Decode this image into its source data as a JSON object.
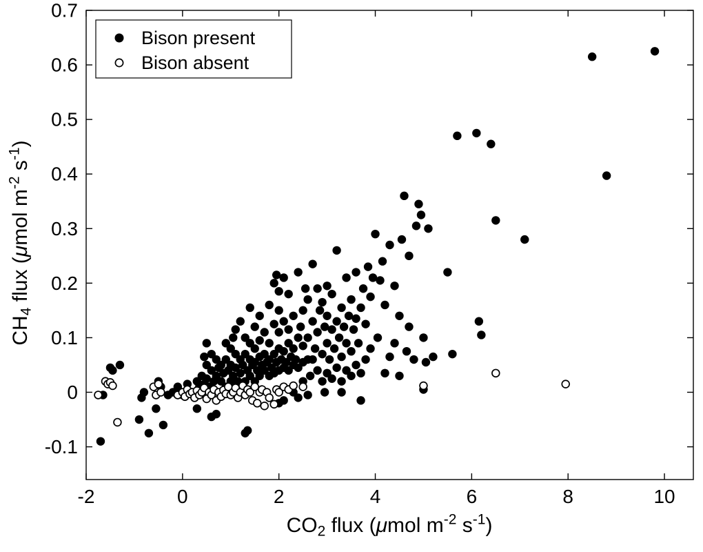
{
  "figure": {
    "background": "#ffffff",
    "axis_color": "#000000",
    "marker_color": "#000000",
    "open_marker_fill": "#ffffff"
  },
  "chart_data": {
    "type": "scatter",
    "title": "",
    "xlabel": "CO2 flux (umol m-2 s-1)",
    "ylabel": "CH4 flux (umol m-2 s-1)",
    "xlabel_runs": [
      {
        "t": "CO"
      },
      {
        "t": "2",
        "s": "sub"
      },
      {
        "t": " flux ("
      },
      {
        "t": "μ",
        "s": "i"
      },
      {
        "t": "mol m"
      },
      {
        "t": "-2",
        "s": "sup"
      },
      {
        "t": " s"
      },
      {
        "t": "-1",
        "s": "sup"
      },
      {
        "t": ")"
      }
    ],
    "ylabel_runs": [
      {
        "t": "CH"
      },
      {
        "t": "4",
        "s": "sub"
      },
      {
        "t": " flux ("
      },
      {
        "t": "μ",
        "s": "i"
      },
      {
        "t": "mol m"
      },
      {
        "t": "-2",
        "s": "sup"
      },
      {
        "t": " s"
      },
      {
        "t": "-1",
        "s": "sup"
      },
      {
        "t": ")"
      }
    ],
    "xlim": [
      -2,
      10.6
    ],
    "ylim": [
      -0.16,
      0.7
    ],
    "xticks": [
      -2,
      0,
      2,
      4,
      6,
      8,
      10
    ],
    "xtick_labels": [
      "-2",
      "0",
      "2",
      "4",
      "6",
      "8",
      "10"
    ],
    "yticks": [
      -0.1,
      0,
      0.1,
      0.2,
      0.3,
      0.4,
      0.5,
      0.6,
      0.7
    ],
    "ytick_labels": [
      "-0.1",
      "0",
      "0.1",
      "0.2",
      "0.3",
      "0.4",
      "0.5",
      "0.6",
      "0.7"
    ],
    "grid": false,
    "legend": {
      "position": "top-left",
      "border": true
    },
    "series": [
      {
        "name": "Bison present",
        "marker": "filled-circle",
        "color": "#000000",
        "points": [
          [
            0.3,
            0.02
          ],
          [
            0.35,
            0.01
          ],
          [
            0.4,
            0.03
          ],
          [
            0.45,
            0.015
          ],
          [
            0.5,
            0.025
          ],
          [
            0.5,
            0.05
          ],
          [
            0.55,
            0.01
          ],
          [
            0.6,
            0.04
          ],
          [
            0.6,
            0.07
          ],
          [
            0.65,
            0.02
          ],
          [
            0.7,
            0.03
          ],
          [
            0.7,
            0.06
          ],
          [
            0.75,
            0.045
          ],
          [
            0.8,
            0.02
          ],
          [
            0.8,
            0.05
          ],
          [
            0.85,
            0.035
          ],
          [
            0.9,
            0.01
          ],
          [
            0.9,
            0.06
          ],
          [
            0.95,
            0.04
          ],
          [
            1.0,
            0.02
          ],
          [
            1.0,
            0.05
          ],
          [
            1.0,
            0.08
          ],
          [
            1.05,
            0.03
          ],
          [
            1.1,
            0.045
          ],
          [
            1.1,
            0.07
          ],
          [
            1.15,
            0.02
          ],
          [
            1.2,
            0.035
          ],
          [
            1.2,
            0.06
          ],
          [
            1.25,
            0.05
          ],
          [
            1.3,
            0.02
          ],
          [
            1.3,
            0.07
          ],
          [
            1.3,
            0.1
          ],
          [
            1.35,
            0.04
          ],
          [
            1.4,
            0.03
          ],
          [
            1.4,
            0.06
          ],
          [
            1.4,
            0.09
          ],
          [
            1.45,
            0.05
          ],
          [
            1.5,
            0.02
          ],
          [
            1.5,
            0.055
          ],
          [
            1.5,
            0.08
          ],
          [
            1.55,
            0.04
          ],
          [
            1.6,
            0.03
          ],
          [
            1.6,
            0.065
          ],
          [
            1.6,
            0.095
          ],
          [
            1.65,
            0.05
          ],
          [
            1.7,
            0.04
          ],
          [
            1.7,
            0.07
          ],
          [
            1.75,
            0.055
          ],
          [
            1.8,
            0.03
          ],
          [
            1.8,
            0.06
          ],
          [
            1.8,
            0.09
          ],
          [
            1.85,
            0.045
          ],
          [
            1.9,
            0.035
          ],
          [
            1.9,
            0.07
          ],
          [
            1.95,
            0.055
          ],
          [
            2.0,
            0.04
          ],
          [
            2.0,
            0.08
          ],
          [
            2.0,
            0.11
          ],
          [
            2.05,
            0.06
          ],
          [
            2.1,
            0.045
          ],
          [
            2.1,
            0.075
          ],
          [
            2.15,
            0.055
          ],
          [
            2.2,
            0.04
          ],
          [
            2.2,
            0.09
          ],
          [
            2.25,
            0.065
          ],
          [
            2.3,
            0.05
          ],
          [
            2.3,
            0.08
          ],
          [
            2.35,
            0.06
          ],
          [
            2.4,
            0.045
          ],
          [
            2.4,
            0.1
          ],
          [
            2.5,
            0.055
          ],
          [
            2.5,
            0.085
          ],
          [
            2.6,
            0.06
          ],
          [
            0.45,
            0.065
          ],
          [
            0.5,
            0.09
          ],
          [
            0.9,
            0.09
          ],
          [
            1.05,
            0.1
          ],
          [
            1.1,
            0.115
          ],
          [
            1.2,
            0.13
          ],
          [
            1.4,
            0.155
          ],
          [
            1.5,
            0.12
          ],
          [
            1.6,
            0.14
          ],
          [
            1.7,
            0.11
          ],
          [
            1.8,
            0.16
          ],
          [
            1.9,
            0.125
          ],
          [
            1.9,
            0.2
          ],
          [
            1.95,
            0.215
          ],
          [
            2.0,
            0.15
          ],
          [
            2.0,
            0.185
          ],
          [
            2.1,
            0.13
          ],
          [
            2.1,
            0.21
          ],
          [
            2.2,
            0.115
          ],
          [
            2.2,
            0.18
          ],
          [
            2.3,
            0.14
          ],
          [
            2.4,
            0.22
          ],
          [
            2.45,
            0.12
          ],
          [
            2.5,
            0.02
          ],
          [
            2.5,
            0.15
          ],
          [
            2.55,
            0.19
          ],
          [
            2.6,
            0.1
          ],
          [
            2.6,
            0.17
          ],
          [
            2.65,
            0.03
          ],
          [
            2.7,
            0.06
          ],
          [
            2.7,
            0.13
          ],
          [
            2.7,
            0.235
          ],
          [
            2.75,
            0.08
          ],
          [
            2.8,
            0.04
          ],
          [
            2.8,
            0.11
          ],
          [
            2.8,
            0.19
          ],
          [
            2.85,
            0.15
          ],
          [
            2.9,
            0.02
          ],
          [
            2.9,
            0.07
          ],
          [
            2.9,
            0.165
          ],
          [
            2.95,
            0.12
          ],
          [
            3.0,
            0.035
          ],
          [
            3.0,
            0.09
          ],
          [
            3.0,
            0.14
          ],
          [
            3.0,
            0.195
          ],
          [
            3.05,
            0.06
          ],
          [
            3.1,
            0.025
          ],
          [
            3.1,
            0.115
          ],
          [
            3.1,
            0.18
          ],
          [
            3.15,
            0.08
          ],
          [
            3.2,
            0.045
          ],
          [
            3.2,
            0.13
          ],
          [
            3.2,
            0.26
          ],
          [
            3.25,
            0.1
          ],
          [
            3.3,
            0.02
          ],
          [
            3.3,
            0.065
          ],
          [
            3.3,
            0.155
          ],
          [
            3.35,
            0.12
          ],
          [
            3.4,
            0.04
          ],
          [
            3.4,
            0.09
          ],
          [
            3.4,
            0.21
          ],
          [
            3.45,
            0.14
          ],
          [
            3.5,
            0.03
          ],
          [
            3.5,
            0.075
          ],
          [
            3.5,
            0.17
          ],
          [
            3.55,
            0.115
          ],
          [
            3.6,
            0.05
          ],
          [
            3.6,
            0.135
          ],
          [
            3.6,
            0.22
          ],
          [
            3.65,
            0.09
          ],
          [
            3.7,
            0.035
          ],
          [
            3.7,
            0.155
          ],
          [
            3.75,
            0.19
          ],
          [
            3.8,
            0.06
          ],
          [
            3.8,
            0.125
          ],
          [
            3.85,
            0.23
          ],
          [
            3.9,
            0.08
          ],
          [
            3.9,
            0.175
          ],
          [
            3.95,
            0.21
          ],
          [
            3.7,
            -0.015
          ],
          [
            3.3,
            0.0
          ],
          [
            2.95,
            0.0
          ],
          [
            2.6,
            -0.005
          ],
          [
            4.0,
            0.29
          ],
          [
            4.05,
            0.1
          ],
          [
            4.1,
            0.205
          ],
          [
            4.15,
            0.24
          ],
          [
            4.2,
            0.035
          ],
          [
            4.2,
            0.16
          ],
          [
            4.3,
            0.065
          ],
          [
            4.3,
            0.27
          ],
          [
            4.4,
            0.09
          ],
          [
            4.4,
            0.195
          ],
          [
            4.5,
            0.03
          ],
          [
            4.5,
            0.14
          ],
          [
            4.55,
            0.28
          ],
          [
            4.6,
            0.36
          ],
          [
            4.65,
            0.075
          ],
          [
            4.7,
            0.12
          ],
          [
            4.7,
            0.25
          ],
          [
            4.8,
            0.06
          ],
          [
            4.85,
            0.305
          ],
          [
            4.9,
            0.345
          ],
          [
            4.95,
            0.325
          ],
          [
            5.0,
            0.005
          ],
          [
            5.0,
            0.1
          ],
          [
            5.05,
            0.055
          ],
          [
            5.1,
            0.3
          ],
          [
            5.2,
            0.065
          ],
          [
            5.5,
            0.22
          ],
          [
            5.6,
            0.07
          ],
          [
            5.7,
            0.47
          ],
          [
            6.1,
            0.475
          ],
          [
            6.15,
            0.13
          ],
          [
            6.2,
            0.105
          ],
          [
            6.4,
            0.455
          ],
          [
            6.5,
            0.315
          ],
          [
            7.1,
            0.28
          ],
          [
            8.5,
            0.615
          ],
          [
            8.8,
            0.397
          ],
          [
            9.8,
            0.625
          ],
          [
            -1.7,
            -0.09
          ],
          [
            -1.65,
            -0.005
          ],
          [
            -1.5,
            0.045
          ],
          [
            -1.45,
            0.04
          ],
          [
            -1.3,
            0.05
          ],
          [
            -0.9,
            -0.05
          ],
          [
            -0.85,
            -0.01
          ],
          [
            -0.8,
            0.0
          ],
          [
            -0.7,
            -0.075
          ],
          [
            -0.55,
            -0.03
          ],
          [
            -0.5,
            0.02
          ],
          [
            -0.45,
            0.01
          ],
          [
            -0.4,
            -0.06
          ],
          [
            -0.3,
            -0.005
          ],
          [
            -0.2,
            0.0
          ],
          [
            -0.1,
            0.01
          ],
          [
            0.0,
            -0.005
          ],
          [
            0.1,
            0.015
          ],
          [
            0.2,
            0.0
          ],
          [
            0.3,
            -0.03
          ],
          [
            0.6,
            -0.045
          ],
          [
            0.7,
            -0.04
          ],
          [
            1.3,
            -0.075
          ],
          [
            1.35,
            -0.07
          ],
          [
            2.0,
            -0.02
          ],
          [
            2.1,
            -0.015
          ],
          [
            2.3,
            0.0
          ],
          [
            2.4,
            -0.01
          ]
        ]
      },
      {
        "name": "Bison absent",
        "marker": "open-circle",
        "color": "#000000",
        "fill": "#ffffff",
        "points": [
          [
            -1.75,
            -0.005
          ],
          [
            -1.6,
            0.02
          ],
          [
            -1.55,
            0.015
          ],
          [
            -1.5,
            0.018
          ],
          [
            -1.45,
            0.012
          ],
          [
            -1.35,
            -0.055
          ],
          [
            -0.6,
            0.01
          ],
          [
            -0.55,
            -0.005
          ],
          [
            -0.5,
            0.015
          ],
          [
            -0.45,
            0.0
          ],
          [
            -0.1,
            -0.005
          ],
          [
            0.0,
            0.0
          ],
          [
            0.05,
            -0.008
          ],
          [
            0.1,
            0.005
          ],
          [
            0.15,
            -0.003
          ],
          [
            0.2,
            0.0
          ],
          [
            0.25,
            -0.01
          ],
          [
            0.3,
            0.003
          ],
          [
            0.35,
            -0.005
          ],
          [
            0.4,
            0.0
          ],
          [
            0.45,
            0.008
          ],
          [
            0.5,
            -0.012
          ],
          [
            0.55,
            0.0
          ],
          [
            0.6,
            -0.005
          ],
          [
            0.65,
            0.005
          ],
          [
            0.7,
            -0.015
          ],
          [
            0.75,
            0.0
          ],
          [
            0.8,
            -0.008
          ],
          [
            0.85,
            0.004
          ],
          [
            0.9,
            -0.003
          ],
          [
            0.95,
            0.01
          ],
          [
            1.0,
            -0.005
          ],
          [
            1.05,
            0.0
          ],
          [
            1.1,
            0.008
          ],
          [
            1.15,
            -0.01
          ],
          [
            1.2,
            0.0
          ],
          [
            1.25,
            0.012
          ],
          [
            1.3,
            -0.005
          ],
          [
            1.35,
            0.005
          ],
          [
            1.4,
            0.0
          ],
          [
            1.45,
            -0.015
          ],
          [
            1.5,
            0.01
          ],
          [
            1.55,
            -0.02
          ],
          [
            1.6,
            0.0
          ],
          [
            1.65,
            0.005
          ],
          [
            1.7,
            -0.025
          ],
          [
            1.75,
            0.0
          ],
          [
            1.8,
            -0.01
          ],
          [
            1.9,
            -0.022
          ],
          [
            1.95,
            0.005
          ],
          [
            2.0,
            0.0
          ],
          [
            2.1,
            0.01
          ],
          [
            2.2,
            0.005
          ],
          [
            2.3,
            0.012
          ],
          [
            2.5,
            0.01
          ],
          [
            5.0,
            0.012
          ],
          [
            6.5,
            0.035
          ],
          [
            7.95,
            0.015
          ]
        ]
      }
    ]
  }
}
